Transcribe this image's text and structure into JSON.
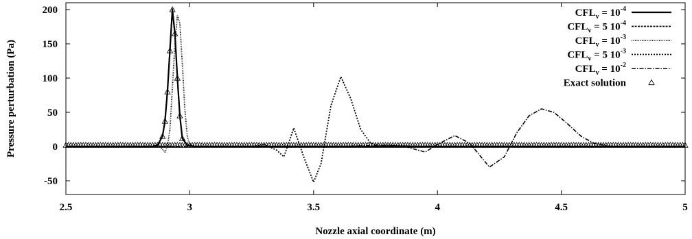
{
  "chart_data": {
    "type": "line",
    "title": "",
    "xlabel": "Nozzle axial coordinate (m)",
    "ylabel": "Pressure perturbation (Pa)",
    "xlim": [
      2.5,
      5.0
    ],
    "ylim": [
      -70,
      210
    ],
    "xticks": [
      "2.5",
      "3",
      "3.5",
      "4",
      "4.5",
      "5"
    ],
    "yticks": [
      "200",
      "150",
      "100",
      "50",
      "0",
      "-50"
    ],
    "grid": false,
    "legend_position": "top-right",
    "series": [
      {
        "name_main": "CFL",
        "name_sub": "v",
        "name_mid": " = 10",
        "name_sup": "-4",
        "style": "solid",
        "x": [
          2.5,
          2.85,
          2.87,
          2.89,
          2.9,
          2.91,
          2.92,
          2.93,
          2.94,
          2.95,
          2.96,
          2.97,
          2.99,
          3.02,
          5.0
        ],
        "y": [
          0,
          0,
          2,
          15,
          37,
          80,
          140,
          200,
          165,
          100,
          45,
          12,
          2,
          0,
          0
        ]
      },
      {
        "name_main": "CFL",
        "name_sub": "v",
        "name_mid": " = 5 10",
        "name_sup": "-4",
        "style": "dashed-fine",
        "x": [
          2.5,
          2.85,
          2.87,
          2.89,
          2.9,
          2.91,
          2.92,
          2.93,
          2.94,
          2.95,
          2.96,
          2.97,
          2.99,
          3.02,
          5.0
        ],
        "y": [
          0,
          0,
          2,
          15,
          38,
          82,
          142,
          201,
          163,
          98,
          43,
          11,
          2,
          0,
          0
        ]
      },
      {
        "name_main": "CFL",
        "name_sub": "v",
        "name_mid": " = 10",
        "name_sup": "-3",
        "style": "dotted",
        "x": [
          2.5,
          2.88,
          2.9,
          2.91,
          2.92,
          2.93,
          2.94,
          2.95,
          2.96,
          2.97,
          2.98,
          2.99,
          3.0,
          3.02,
          3.05,
          5.0
        ],
        "y": [
          0,
          0,
          -8,
          0,
          25,
          85,
          150,
          192,
          180,
          120,
          55,
          15,
          3,
          0,
          0,
          0
        ]
      },
      {
        "name_main": "CFL",
        "name_sub": "v",
        "name_mid": " = 5 10",
        "name_sup": "-3",
        "style": "dashed-medium",
        "x": [
          2.5,
          3.0,
          3.25,
          3.3,
          3.35,
          3.38,
          3.42,
          3.46,
          3.5,
          3.53,
          3.57,
          3.61,
          3.65,
          3.69,
          3.73,
          3.78,
          3.85,
          3.9,
          5.0
        ],
        "y": [
          0,
          0,
          0,
          3,
          -5,
          -15,
          27,
          -15,
          -52,
          -25,
          60,
          102,
          70,
          25,
          5,
          0,
          2,
          0,
          0
        ]
      },
      {
        "name_main": "CFL",
        "name_sub": "v",
        "name_mid": " = 10",
        "name_sup": "-2",
        "style": "dash-dot",
        "x": [
          2.5,
          3.6,
          3.8,
          3.87,
          3.95,
          4.01,
          4.07,
          4.13,
          4.21,
          4.27,
          4.32,
          4.37,
          4.42,
          4.47,
          4.52,
          4.58,
          4.63,
          4.7,
          5.0
        ],
        "y": [
          0,
          0,
          2,
          0,
          -8,
          5,
          16,
          5,
          -30,
          -15,
          20,
          45,
          55,
          50,
          35,
          15,
          5,
          0,
          0
        ]
      },
      {
        "name_main": "Exact solution",
        "style": "triangles",
        "x": [
          2.89,
          2.9,
          2.91,
          2.92,
          2.93,
          2.94,
          2.95,
          2.96,
          2.97
        ],
        "y": [
          15,
          37,
          80,
          140,
          200,
          165,
          100,
          45,
          12
        ],
        "baseline_x_start": 2.5,
        "baseline_x_end": 5.0,
        "baseline_step": 0.01,
        "baseline_y": 2
      }
    ]
  }
}
